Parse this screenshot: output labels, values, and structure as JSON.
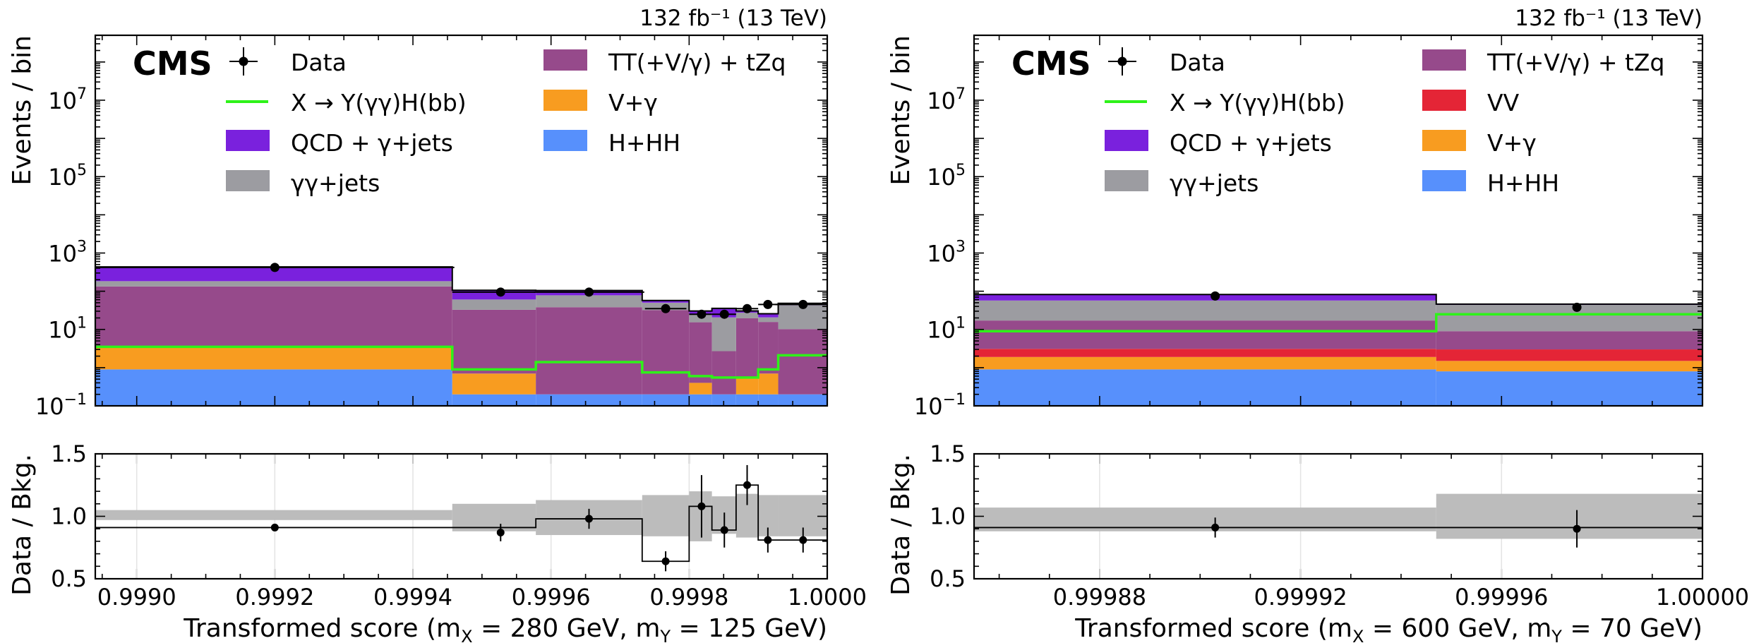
{
  "panels": [
    {
      "cms_label": "CMS",
      "lumi_label": "132 fb⁻¹ (13 TeV)",
      "main_ylabel": "Events / bin",
      "ratio_ylabel": "Data / Bkg.",
      "xlabel": "Transformed score (mₓ = 280 GeV, mᵧ = 125 GeV)",
      "xlabel_parts": {
        "pre": "Transformed score (m",
        "sub1": "X",
        "mid": " = 280 GeV, m",
        "sub2": "Y",
        "post": " = 125 GeV)"
      }
    },
    {
      "cms_label": "CMS",
      "lumi_label": "132 fb⁻¹ (13 TeV)",
      "main_ylabel": "Events / bin",
      "ratio_ylabel": "Data / Bkg.",
      "xlabel": "Transformed score (mₓ = 600 GeV, mᵧ = 70 GeV)",
      "xlabel_parts": {
        "pre": "Transformed score (m",
        "sub1": "X",
        "mid": " = 600 GeV, m",
        "sub2": "Y",
        "post": " = 70 GeV)"
      }
    }
  ],
  "chart_data": [
    {
      "type": "bar",
      "stacked": true,
      "yscale": "log",
      "xlim": [
        0.99894,
        1.0
      ],
      "ylim": [
        0.1,
        500000000
      ],
      "ratio_ylim": [
        0.5,
        1.5
      ],
      "xticks": [
        0.999,
        0.9992,
        0.9994,
        0.9996,
        0.9998,
        1.0
      ],
      "xtick_labels": [
        "0.9990",
        "0.9992",
        "0.9994",
        "0.9996",
        "0.9998",
        "1.0000"
      ],
      "yticks": [
        0.1,
        10,
        1000,
        100000,
        10000000
      ],
      "ytick_bases": [
        "10",
        "10",
        "10",
        "10",
        "10"
      ],
      "ytick_exps": [
        "−1",
        "1",
        "3",
        "5",
        "7"
      ],
      "ratio_yticks": [
        0.5,
        1.0,
        1.5
      ],
      "ratio_ytick_labels": [
        "0.5",
        "1.0",
        "1.5"
      ],
      "bin_edges": [
        0.99894,
        0.999457,
        0.999578,
        0.999732,
        0.9998,
        0.999833,
        0.999868,
        0.9999,
        0.999929,
        1.0
      ],
      "series": [
        {
          "name": "H+HH",
          "color": "#5790fc",
          "values": [
            0.9,
            0.2,
            0.2,
            0.2,
            0.2,
            0.2,
            0.2,
            0.2,
            0.2
          ]
        },
        {
          "name": "V+γ",
          "color": "#f89c20",
          "values": [
            2.5,
            0.5,
            0,
            0,
            0.2,
            0,
            0.35,
            0.5,
            0
          ]
        },
        {
          "name": "VV",
          "color": "#e42536",
          "values": [
            0,
            0,
            0,
            0,
            0,
            0,
            0,
            0,
            0
          ]
        },
        {
          "name": "TT(+V/γ) + tZq",
          "color": "#964a8b",
          "values": [
            130,
            32,
            38,
            32,
            15,
            2.5,
            19,
            15,
            10
          ]
        },
        {
          "name": "γγ+jets",
          "color": "#9c9ca1",
          "values": [
            50,
            28,
            40,
            18,
            10,
            18,
            8,
            5,
            33
          ]
        },
        {
          "name": "QCD + γ+jets",
          "color": "#7a21dd",
          "values": [
            250,
            45,
            26,
            7,
            5,
            15,
            3,
            5,
            5
          ]
        }
      ],
      "signal": {
        "name": "X → Y(γγ)H(bb)",
        "color": "#2ef219",
        "values": [
          3.5,
          0.9,
          1.4,
          0.75,
          0.6,
          0.55,
          0.55,
          0.9,
          2.1
        ]
      },
      "data": {
        "name": "Data",
        "x": [
          0.9992,
          0.999527,
          0.999655,
          0.999766,
          0.999818,
          0.999851,
          0.999884,
          0.999914,
          0.999965
        ],
        "y": [
          420,
          95,
          95,
          35,
          25,
          25,
          35,
          45,
          45
        ],
        "xerr_lo": [
          0.00026,
          7e-05,
          8e-05,
          3e-05,
          1.8e-05,
          1.8e-05,
          1.6e-05,
          1.4e-05,
          4e-05
        ],
        "xerr_hi": [
          0.00026,
          5e-05,
          8e-05,
          3e-05,
          1.5e-05,
          1.7e-05,
          1.6e-05,
          1.5e-05,
          4e-05
        ]
      },
      "ratio": {
        "x": [
          0.9992,
          0.999527,
          0.999655,
          0.999766,
          0.999818,
          0.999851,
          0.999884,
          0.999914,
          0.999965
        ],
        "y": [
          0.91,
          0.87,
          0.98,
          0.64,
          1.08,
          0.89,
          1.25,
          0.81,
          0.81
        ],
        "yerr": [
          0.02,
          0.07,
          0.08,
          0.08,
          0.25,
          0.14,
          0.16,
          0.1,
          0.1
        ],
        "line": [
          0.91,
          0.91,
          0.98,
          0.64,
          1.08,
          0.89,
          1.25,
          0.81,
          0.81
        ],
        "band_lo": [
          0.97,
          0.88,
          0.85,
          0.84,
          0.8,
          0.86,
          0.83,
          0.84,
          0.84
        ],
        "band_hi": [
          1.05,
          1.1,
          1.13,
          1.17,
          1.2,
          1.16,
          1.18,
          1.17,
          1.17
        ]
      },
      "legend": {
        "left": [
          "Data",
          "X → Y(γγ)H(bb)",
          "QCD + γ+jets",
          "γγ+jets"
        ],
        "right": [
          "TT(+V/γ) + tZq",
          "V+γ",
          "H+HH"
        ]
      }
    },
    {
      "type": "bar",
      "stacked": true,
      "yscale": "log",
      "xlim": [
        0.999855,
        1.0
      ],
      "ylim": [
        0.1,
        500000000
      ],
      "ratio_ylim": [
        0.5,
        1.5
      ],
      "xticks": [
        0.99988,
        0.99992,
        0.99996,
        1.0
      ],
      "xtick_labels": [
        "0.99988",
        "0.99992",
        "0.99996",
        "1.00000"
      ],
      "yticks": [
        0.1,
        10,
        1000,
        100000,
        10000000
      ],
      "ytick_bases": [
        "10",
        "10",
        "10",
        "10",
        "10"
      ],
      "ytick_exps": [
        "−1",
        "1",
        "3",
        "5",
        "7"
      ],
      "ratio_yticks": [
        0.5,
        1.0,
        1.5
      ],
      "ratio_ytick_labels": [
        "0.5",
        "1.0",
        "1.5"
      ],
      "bin_edges": [
        0.999855,
        0.999947,
        1.0
      ],
      "series": [
        {
          "name": "H+HH",
          "color": "#5790fc",
          "values": [
            0.9,
            0.8
          ]
        },
        {
          "name": "V+γ",
          "color": "#f89c20",
          "values": [
            1.0,
            0.7
          ]
        },
        {
          "name": "VV",
          "color": "#e42536",
          "values": [
            1.2,
            1.5
          ]
        },
        {
          "name": "TT(+V/γ) + tZq",
          "color": "#964a8b",
          "values": [
            14,
            6
          ]
        },
        {
          "name": "γγ+jets",
          "color": "#9c9ca1",
          "values": [
            40,
            35
          ]
        },
        {
          "name": "QCD + γ+jets",
          "color": "#7a21dd",
          "values": [
            25,
            2
          ]
        }
      ],
      "signal": {
        "name": "X → Y(γγ)H(bb)",
        "color": "#2ef219",
        "values": [
          9,
          25
        ]
      },
      "data": {
        "name": "Data",
        "x": [
          0.999903,
          0.999975
        ],
        "y": [
          75,
          38
        ],
        "xerr_lo": [
          0.0,
          0.0
        ],
        "xerr_hi": [
          0.0,
          0.0
        ]
      },
      "ratio": {
        "x": [
          0.999903,
          0.999975
        ],
        "y": [
          0.91,
          0.9
        ],
        "yerr": [
          0.08,
          0.15
        ],
        "line": [
          0.91,
          0.91
        ],
        "band_lo": [
          0.88,
          0.82
        ],
        "band_hi": [
          1.07,
          1.18
        ]
      },
      "legend": {
        "left": [
          "Data",
          "X → Y(γγ)H(bb)",
          "QCD + γ+jets",
          "γγ+jets"
        ],
        "right": [
          "TT(+V/γ) + tZq",
          "VV",
          "V+γ",
          "H+HH"
        ]
      }
    }
  ]
}
